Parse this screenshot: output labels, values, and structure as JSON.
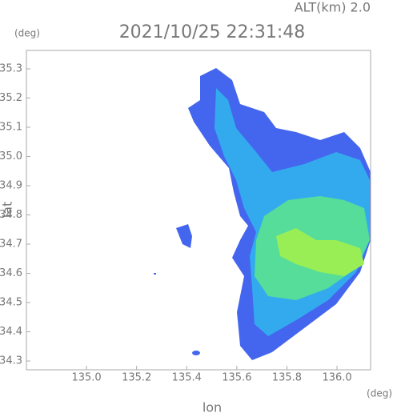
{
  "chart_data": {
    "type": "map",
    "title": "2021/10/25 22:31:48",
    "altitude_label": "ALT(km) 2.0",
    "y_unit": "(deg)",
    "x_unit": "(deg)",
    "xlabel": "lon",
    "ylabel": "lat",
    "xlim": [
      134.76,
      136.134
    ],
    "ylim": [
      34.27,
      35.363
    ],
    "xticks": [
      {
        "value": 135,
        "label": "135.0"
      },
      135.2,
      135.4,
      135.6,
      135.8,
      {
        "value": 136,
        "label": "136.0"
      }
    ],
    "yticks": [
      34.3,
      34.4,
      34.5,
      34.6,
      34.7,
      34.8,
      34.9,
      {
        "value": 35,
        "label": "35.0"
      },
      35.1,
      35.2,
      35.3
    ]
  }
}
